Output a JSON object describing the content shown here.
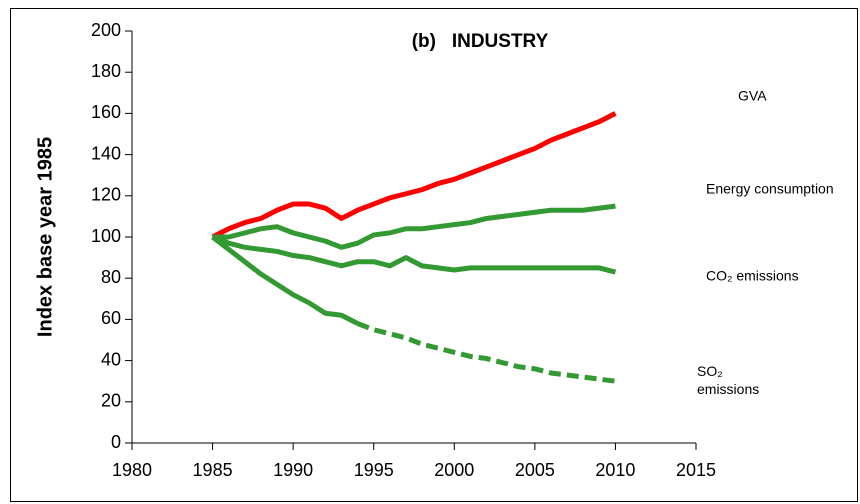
{
  "chart_data": {
    "type": "line",
    "title": "(b)   INDUSTRY",
    "y_label": "Index base year 1985",
    "x": [
      1985,
      1986,
      1987,
      1988,
      1989,
      1990,
      1991,
      1992,
      1993,
      1994,
      1995,
      1996,
      1997,
      1998,
      1999,
      2000,
      2001,
      2002,
      2003,
      2004,
      2005,
      2006,
      2007,
      2008,
      2009,
      2010
    ],
    "series": [
      {
        "name": "GVA",
        "color": "#ff0000",
        "values": [
          100,
          104,
          107,
          109,
          113,
          116,
          116,
          114,
          109,
          113,
          116,
          119,
          121,
          123,
          126,
          128,
          131,
          134,
          137,
          140,
          143,
          147,
          150,
          153,
          156,
          160
        ]
      },
      {
        "name": "Energy consumption",
        "color": "#339933",
        "values": [
          100,
          100,
          102,
          104,
          105,
          102,
          100,
          98,
          95,
          97,
          101,
          102,
          104,
          104,
          105,
          106,
          107,
          109,
          110,
          111,
          112,
          113,
          113,
          113,
          114,
          115
        ]
      },
      {
        "name": "CO₂ emissions",
        "color": "#339933",
        "values": [
          100,
          97,
          95,
          94,
          93,
          91,
          90,
          88,
          86,
          88,
          88,
          86,
          90,
          86,
          85,
          84,
          85,
          85,
          85,
          85,
          85,
          85,
          85,
          85,
          85,
          83
        ]
      },
      {
        "name": "SO₂ emissions",
        "color": "#339933",
        "dashed_from_x": 1994,
        "values": [
          100,
          94,
          88,
          82,
          77,
          72,
          68,
          63,
          62,
          58,
          55,
          53,
          51,
          48,
          46,
          44,
          42,
          41,
          39,
          37,
          36,
          34,
          33,
          32,
          31,
          30
        ]
      }
    ],
    "xlim": [
      1980,
      2015
    ],
    "xticks": [
      1980,
      1985,
      1990,
      1995,
      2000,
      2005,
      2010,
      2015
    ],
    "ylim": [
      0,
      200
    ],
    "yticks": [
      0,
      20,
      40,
      60,
      80,
      100,
      120,
      140,
      160,
      180,
      200
    ]
  }
}
